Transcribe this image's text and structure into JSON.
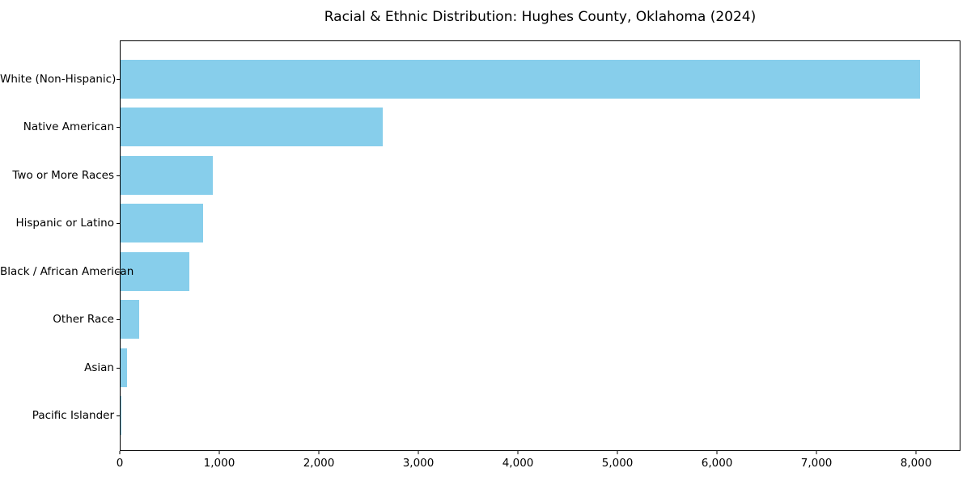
{
  "page": {
    "background": "#ffffff",
    "text_color": "#000000"
  },
  "chart_data": {
    "type": "bar",
    "orientation": "horizontal",
    "title": "Racial & Ethnic Distribution: Hughes County, Oklahoma (2024)",
    "xlabel": "",
    "ylabel": "",
    "categories": [
      "White (Non-Hispanic)",
      "Native American",
      "Two or More Races",
      "Hispanic or Latino",
      "Black / African American",
      "Other Race",
      "Asian",
      "Pacific Islander"
    ],
    "values": [
      8030,
      2630,
      925,
      830,
      690,
      185,
      65,
      5
    ],
    "bar_color": "#87CEEB",
    "xlim": [
      0,
      8430
    ],
    "xticks": {
      "values": [
        0,
        1000,
        2000,
        3000,
        4000,
        5000,
        6000,
        7000,
        8000
      ],
      "labels": [
        "0",
        "1,000",
        "2,000",
        "3,000",
        "4,000",
        "5,000",
        "6,000",
        "7,000",
        "8,000"
      ]
    },
    "grid": false,
    "legend": "none",
    "axis_color": "#000000"
  }
}
